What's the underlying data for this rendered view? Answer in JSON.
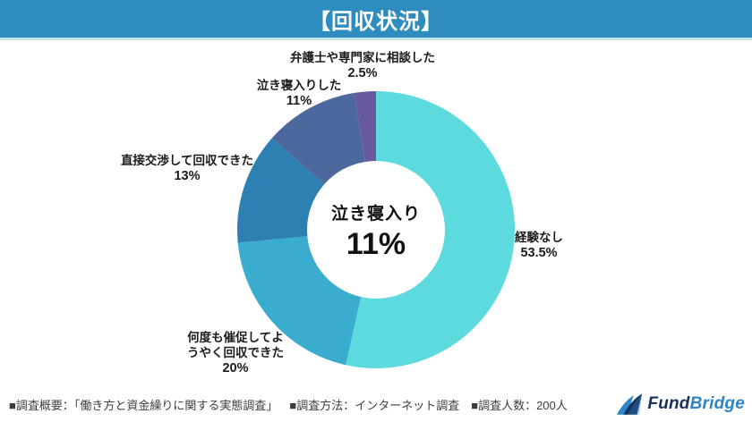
{
  "header": {
    "title": "【回収状況】",
    "bg_color": "#2e8cbe"
  },
  "chart_data": {
    "type": "pie",
    "subtype": "donut",
    "title": "回収状況",
    "unit": "%",
    "start_angle_deg": 0,
    "direction": "clockwise",
    "inner_radius_ratio": 0.5,
    "segments": [
      {
        "label": "経験なし",
        "value": 53.5,
        "pct_label": "53.5%",
        "color": "#5cdade"
      },
      {
        "label": "何度も催促してようやく回収できた",
        "value": 20,
        "pct_label": "20%",
        "color": "#3aadce"
      },
      {
        "label": "直接交渉して回収できた",
        "value": 13,
        "pct_label": "13%",
        "color": "#2c81b2"
      },
      {
        "label": "泣き寝入りした",
        "value": 11,
        "pct_label": "11%",
        "color": "#4d689c"
      },
      {
        "label": "弁護士や専門家に相談した",
        "value": 2.5,
        "pct_label": "2.5%",
        "color": "#68599d"
      }
    ],
    "center_label": {
      "line1": "泣き寝入り",
      "line2": "11%"
    }
  },
  "footer": {
    "survey_overview": "■調査概要：「働き方と資金繰りに関する実態調査」",
    "survey_method": "■調査方法：インターネット調査",
    "survey_count": "■調査人数：200人"
  },
  "logo": {
    "part1": "Fund",
    "part2": "Bridge",
    "color1": "#16325c",
    "color2": "#2d84c6"
  }
}
